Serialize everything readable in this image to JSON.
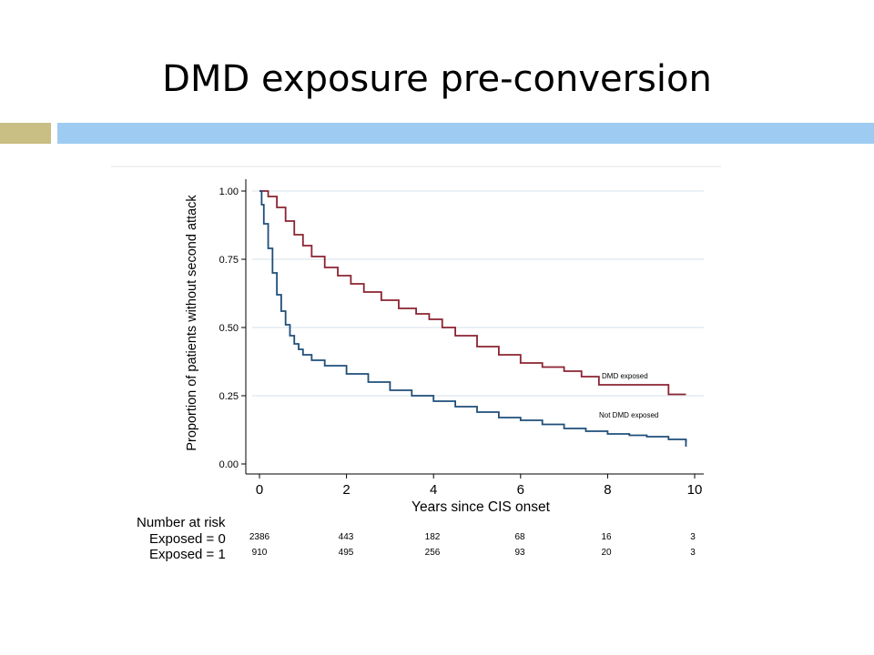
{
  "slide": {
    "title": "DMD exposure pre-conversion",
    "colors": {
      "accent_left": "#c9be84",
      "accent_right": "#9ecbf1"
    }
  },
  "chart_data": {
    "type": "line",
    "step": true,
    "xlabel": "Years since CIS onset",
    "ylabel": "Proportion of patients without second attack",
    "xlim": [
      0,
      10
    ],
    "ylim": [
      0,
      1
    ],
    "x_ticks": [
      "0",
      "2",
      "4",
      "6",
      "8",
      "10"
    ],
    "y_ticks": [
      "0.00",
      "0.25",
      "0.50",
      "0.75",
      "1.00"
    ],
    "grid": true,
    "series": [
      {
        "name": "DMD exposed",
        "color": "#8b2331",
        "x": [
          0,
          0.2,
          0.4,
          0.6,
          0.8,
          1.0,
          1.2,
          1.5,
          1.8,
          2.1,
          2.4,
          2.8,
          3.2,
          3.6,
          3.9,
          4.2,
          4.5,
          5.0,
          5.5,
          6.0,
          6.5,
          7.0,
          7.4,
          7.8,
          8.5,
          9.4,
          9.8
        ],
        "y": [
          1.0,
          0.98,
          0.94,
          0.89,
          0.84,
          0.8,
          0.76,
          0.72,
          0.69,
          0.66,
          0.63,
          0.6,
          0.57,
          0.55,
          0.53,
          0.5,
          0.47,
          0.43,
          0.4,
          0.37,
          0.355,
          0.34,
          0.32,
          0.29,
          0.29,
          0.255,
          0.255
        ],
        "label": "DMD exposed"
      },
      {
        "name": "Not DMD exposed",
        "color": "#1f4e79",
        "x": [
          0,
          0.05,
          0.1,
          0.2,
          0.3,
          0.4,
          0.5,
          0.6,
          0.7,
          0.8,
          0.9,
          1.0,
          1.2,
          1.5,
          2.0,
          2.5,
          3.0,
          3.5,
          4.0,
          4.5,
          5.0,
          5.5,
          6.0,
          6.5,
          7.0,
          7.5,
          8.0,
          8.5,
          8.9,
          9.4,
          9.8
        ],
        "y": [
          1.0,
          0.95,
          0.88,
          0.79,
          0.7,
          0.62,
          0.56,
          0.51,
          0.47,
          0.44,
          0.42,
          0.4,
          0.38,
          0.36,
          0.33,
          0.3,
          0.27,
          0.25,
          0.23,
          0.21,
          0.19,
          0.17,
          0.16,
          0.145,
          0.13,
          0.12,
          0.11,
          0.105,
          0.1,
          0.09,
          0.08
        ],
        "label": "Not DMD exposed"
      }
    ],
    "risk_table": {
      "title": "Number at risk",
      "rows": [
        {
          "label": "Exposed = 0",
          "values": [
            "2386",
            "443",
            "182",
            "68",
            "16",
            "3"
          ]
        },
        {
          "label": "Exposed = 1",
          "values": [
            "910",
            "495",
            "256",
            "93",
            "20",
            "3"
          ]
        }
      ]
    }
  }
}
